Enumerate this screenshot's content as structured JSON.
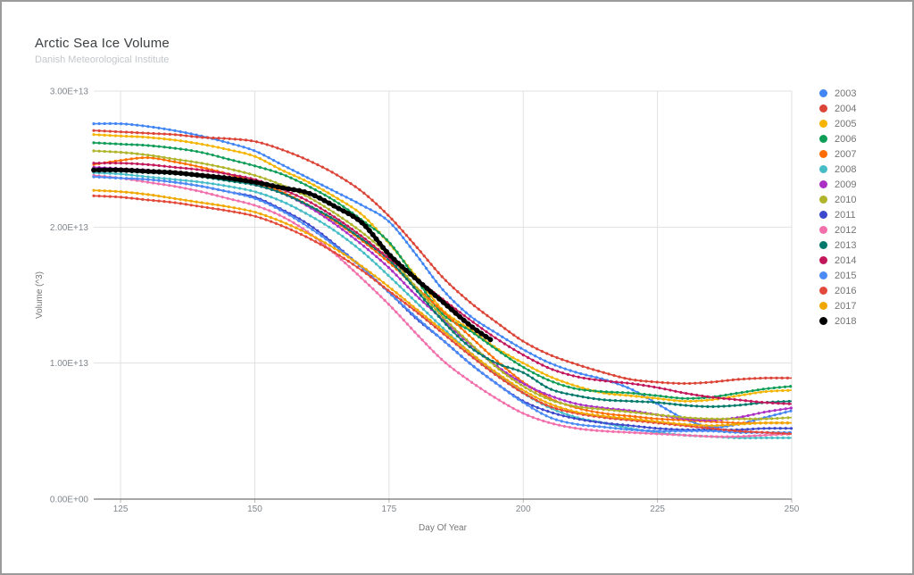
{
  "chart_data": {
    "type": "line",
    "title": "Arctic Sea Ice Volume",
    "subtitle": "Danish Meteorological Institute",
    "xlabel": "Day Of Year",
    "ylabel": "Volume (^3)",
    "legend_position": "right",
    "grid": true,
    "xlim": [
      120,
      250
    ],
    "ylim": [
      0,
      30000000000000.0
    ],
    "x_ticks": [
      125,
      150,
      175,
      200,
      225,
      250
    ],
    "y_ticks": [
      {
        "label": "0.00E+00",
        "value": 0.0
      },
      {
        "label": "1.00E+13",
        "value": 1.0
      },
      {
        "label": "2.00E+13",
        "value": 2.0
      },
      {
        "label": "3.00E+13",
        "value": 3.0
      }
    ],
    "value_scale_note": "series values are in units of 1e13",
    "days": [
      120,
      125,
      130,
      135,
      140,
      145,
      150,
      155,
      160,
      165,
      170,
      175,
      180,
      185,
      190,
      195,
      200,
      205,
      210,
      215,
      220,
      225,
      230,
      235,
      240,
      245,
      250
    ],
    "series": [
      {
        "name": "2003",
        "color": "#4285F4",
        "values": [
          2.76,
          2.76,
          2.74,
          2.71,
          2.67,
          2.62,
          2.56,
          2.46,
          2.36,
          2.26,
          2.16,
          2.04,
          1.8,
          1.54,
          1.35,
          1.22,
          1.1,
          1.0,
          0.93,
          0.88,
          0.81,
          0.7,
          0.59,
          0.53,
          0.55,
          0.6,
          0.65
        ]
      },
      {
        "name": "2004",
        "color": "#DB4437",
        "values": [
          2.71,
          2.7,
          2.69,
          2.68,
          2.66,
          2.65,
          2.63,
          2.57,
          2.49,
          2.39,
          2.26,
          2.08,
          1.86,
          1.63,
          1.45,
          1.3,
          1.16,
          1.06,
          0.99,
          0.93,
          0.88,
          0.86,
          0.85,
          0.86,
          0.88,
          0.89,
          0.89
        ]
      },
      {
        "name": "2005",
        "color": "#F4B400",
        "values": [
          2.68,
          2.67,
          2.66,
          2.64,
          2.61,
          2.57,
          2.52,
          2.42,
          2.33,
          2.22,
          2.09,
          1.88,
          1.64,
          1.39,
          1.25,
          1.11,
          1.0,
          0.9,
          0.83,
          0.78,
          0.76,
          0.74,
          0.72,
          0.73,
          0.76,
          0.79,
          0.8
        ]
      },
      {
        "name": "2006",
        "color": "#0F9D58",
        "values": [
          2.62,
          2.61,
          2.6,
          2.58,
          2.55,
          2.5,
          2.45,
          2.39,
          2.3,
          2.19,
          2.05,
          1.89,
          1.62,
          1.36,
          1.24,
          1.1,
          0.97,
          0.87,
          0.81,
          0.79,
          0.78,
          0.76,
          0.74,
          0.75,
          0.78,
          0.81,
          0.83
        ]
      },
      {
        "name": "2007",
        "color": "#FF6D01",
        "values": [
          2.46,
          2.49,
          2.51,
          2.48,
          2.44,
          2.39,
          2.33,
          2.26,
          2.16,
          2.04,
          1.9,
          1.74,
          1.56,
          1.38,
          1.2,
          1.02,
          0.86,
          0.74,
          0.67,
          0.63,
          0.61,
          0.59,
          0.58,
          0.57,
          0.56,
          0.56,
          0.56
        ]
      },
      {
        "name": "2008",
        "color": "#46BDC6",
        "values": [
          2.4,
          2.39,
          2.37,
          2.35,
          2.33,
          2.3,
          2.26,
          2.19,
          2.09,
          1.97,
          1.82,
          1.64,
          1.45,
          1.26,
          1.08,
          0.92,
          0.78,
          0.67,
          0.6,
          0.56,
          0.52,
          0.49,
          0.47,
          0.46,
          0.45,
          0.45,
          0.45
        ]
      },
      {
        "name": "2009",
        "color": "#AB30C4",
        "values": [
          2.44,
          2.43,
          2.42,
          2.4,
          2.38,
          2.35,
          2.31,
          2.25,
          2.15,
          2.02,
          1.87,
          1.7,
          1.5,
          1.32,
          1.14,
          0.98,
          0.85,
          0.76,
          0.7,
          0.67,
          0.65,
          0.62,
          0.59,
          0.58,
          0.6,
          0.64,
          0.67
        ]
      },
      {
        "name": "2010",
        "color": "#AFB42B",
        "values": [
          2.56,
          2.55,
          2.53,
          2.5,
          2.47,
          2.43,
          2.38,
          2.31,
          2.22,
          2.1,
          1.96,
          1.79,
          1.56,
          1.34,
          1.15,
          0.97,
          0.83,
          0.73,
          0.68,
          0.66,
          0.64,
          0.62,
          0.6,
          0.59,
          0.59,
          0.59,
          0.6
        ]
      },
      {
        "name": "2011",
        "color": "#3D49CC",
        "values": [
          2.37,
          2.36,
          2.35,
          2.33,
          2.3,
          2.26,
          2.22,
          2.13,
          2.02,
          1.87,
          1.7,
          1.52,
          1.33,
          1.17,
          1.0,
          0.85,
          0.72,
          0.64,
          0.59,
          0.56,
          0.54,
          0.52,
          0.51,
          0.51,
          0.51,
          0.52,
          0.52
        ]
      },
      {
        "name": "2012",
        "color": "#F170AC",
        "values": [
          2.38,
          2.36,
          2.33,
          2.3,
          2.26,
          2.21,
          2.16,
          2.08,
          1.96,
          1.8,
          1.62,
          1.43,
          1.22,
          1.02,
          0.87,
          0.74,
          0.63,
          0.56,
          0.52,
          0.5,
          0.49,
          0.48,
          0.47,
          0.46,
          0.46,
          0.47,
          0.48
        ]
      },
      {
        "name": "2013",
        "color": "#00796B",
        "values": [
          2.41,
          2.41,
          2.4,
          2.39,
          2.37,
          2.34,
          2.31,
          2.25,
          2.16,
          2.05,
          1.91,
          1.76,
          1.54,
          1.31,
          1.12,
          1.0,
          0.93,
          0.81,
          0.76,
          0.73,
          0.72,
          0.71,
          0.69,
          0.68,
          0.69,
          0.71,
          0.72
        ]
      },
      {
        "name": "2014",
        "color": "#C2185B",
        "values": [
          2.47,
          2.47,
          2.46,
          2.44,
          2.42,
          2.39,
          2.35,
          2.28,
          2.19,
          2.07,
          1.93,
          1.77,
          1.62,
          1.47,
          1.32,
          1.18,
          1.06,
          0.96,
          0.9,
          0.87,
          0.85,
          0.82,
          0.78,
          0.75,
          0.73,
          0.71,
          0.7
        ]
      },
      {
        "name": "2015",
        "color": "#4C8BF5",
        "values": [
          2.37,
          2.36,
          2.35,
          2.33,
          2.3,
          2.26,
          2.21,
          2.12,
          2.0,
          1.86,
          1.7,
          1.52,
          1.34,
          1.17,
          1.0,
          0.85,
          0.71,
          0.6,
          0.55,
          0.53,
          0.51,
          0.5,
          0.5,
          0.5,
          0.49,
          0.49,
          0.49
        ]
      },
      {
        "name": "2016",
        "color": "#E2493B",
        "values": [
          2.23,
          2.22,
          2.2,
          2.18,
          2.15,
          2.12,
          2.08,
          2.01,
          1.92,
          1.81,
          1.68,
          1.53,
          1.38,
          1.22,
          1.06,
          0.91,
          0.78,
          0.68,
          0.63,
          0.6,
          0.58,
          0.56,
          0.54,
          0.52,
          0.5,
          0.49,
          0.48
        ]
      },
      {
        "name": "2017",
        "color": "#F0A800",
        "values": [
          2.27,
          2.26,
          2.24,
          2.21,
          2.18,
          2.15,
          2.11,
          2.04,
          1.95,
          1.84,
          1.71,
          1.56,
          1.4,
          1.24,
          1.08,
          0.93,
          0.8,
          0.7,
          0.64,
          0.61,
          0.59,
          0.57,
          0.55,
          0.54,
          0.55,
          0.56,
          0.56
        ]
      },
      {
        "name": "2018",
        "color": "#000000",
        "line_width": 4.2,
        "days": [
          120,
          125,
          130,
          135,
          140,
          145,
          150,
          155,
          160,
          165,
          170,
          175,
          180,
          185,
          190,
          194
        ],
        "values": [
          2.42,
          2.42,
          2.41,
          2.4,
          2.38,
          2.36,
          2.33,
          2.29,
          2.25,
          2.15,
          2.03,
          1.8,
          1.62,
          1.45,
          1.28,
          1.17
        ]
      }
    ]
  }
}
